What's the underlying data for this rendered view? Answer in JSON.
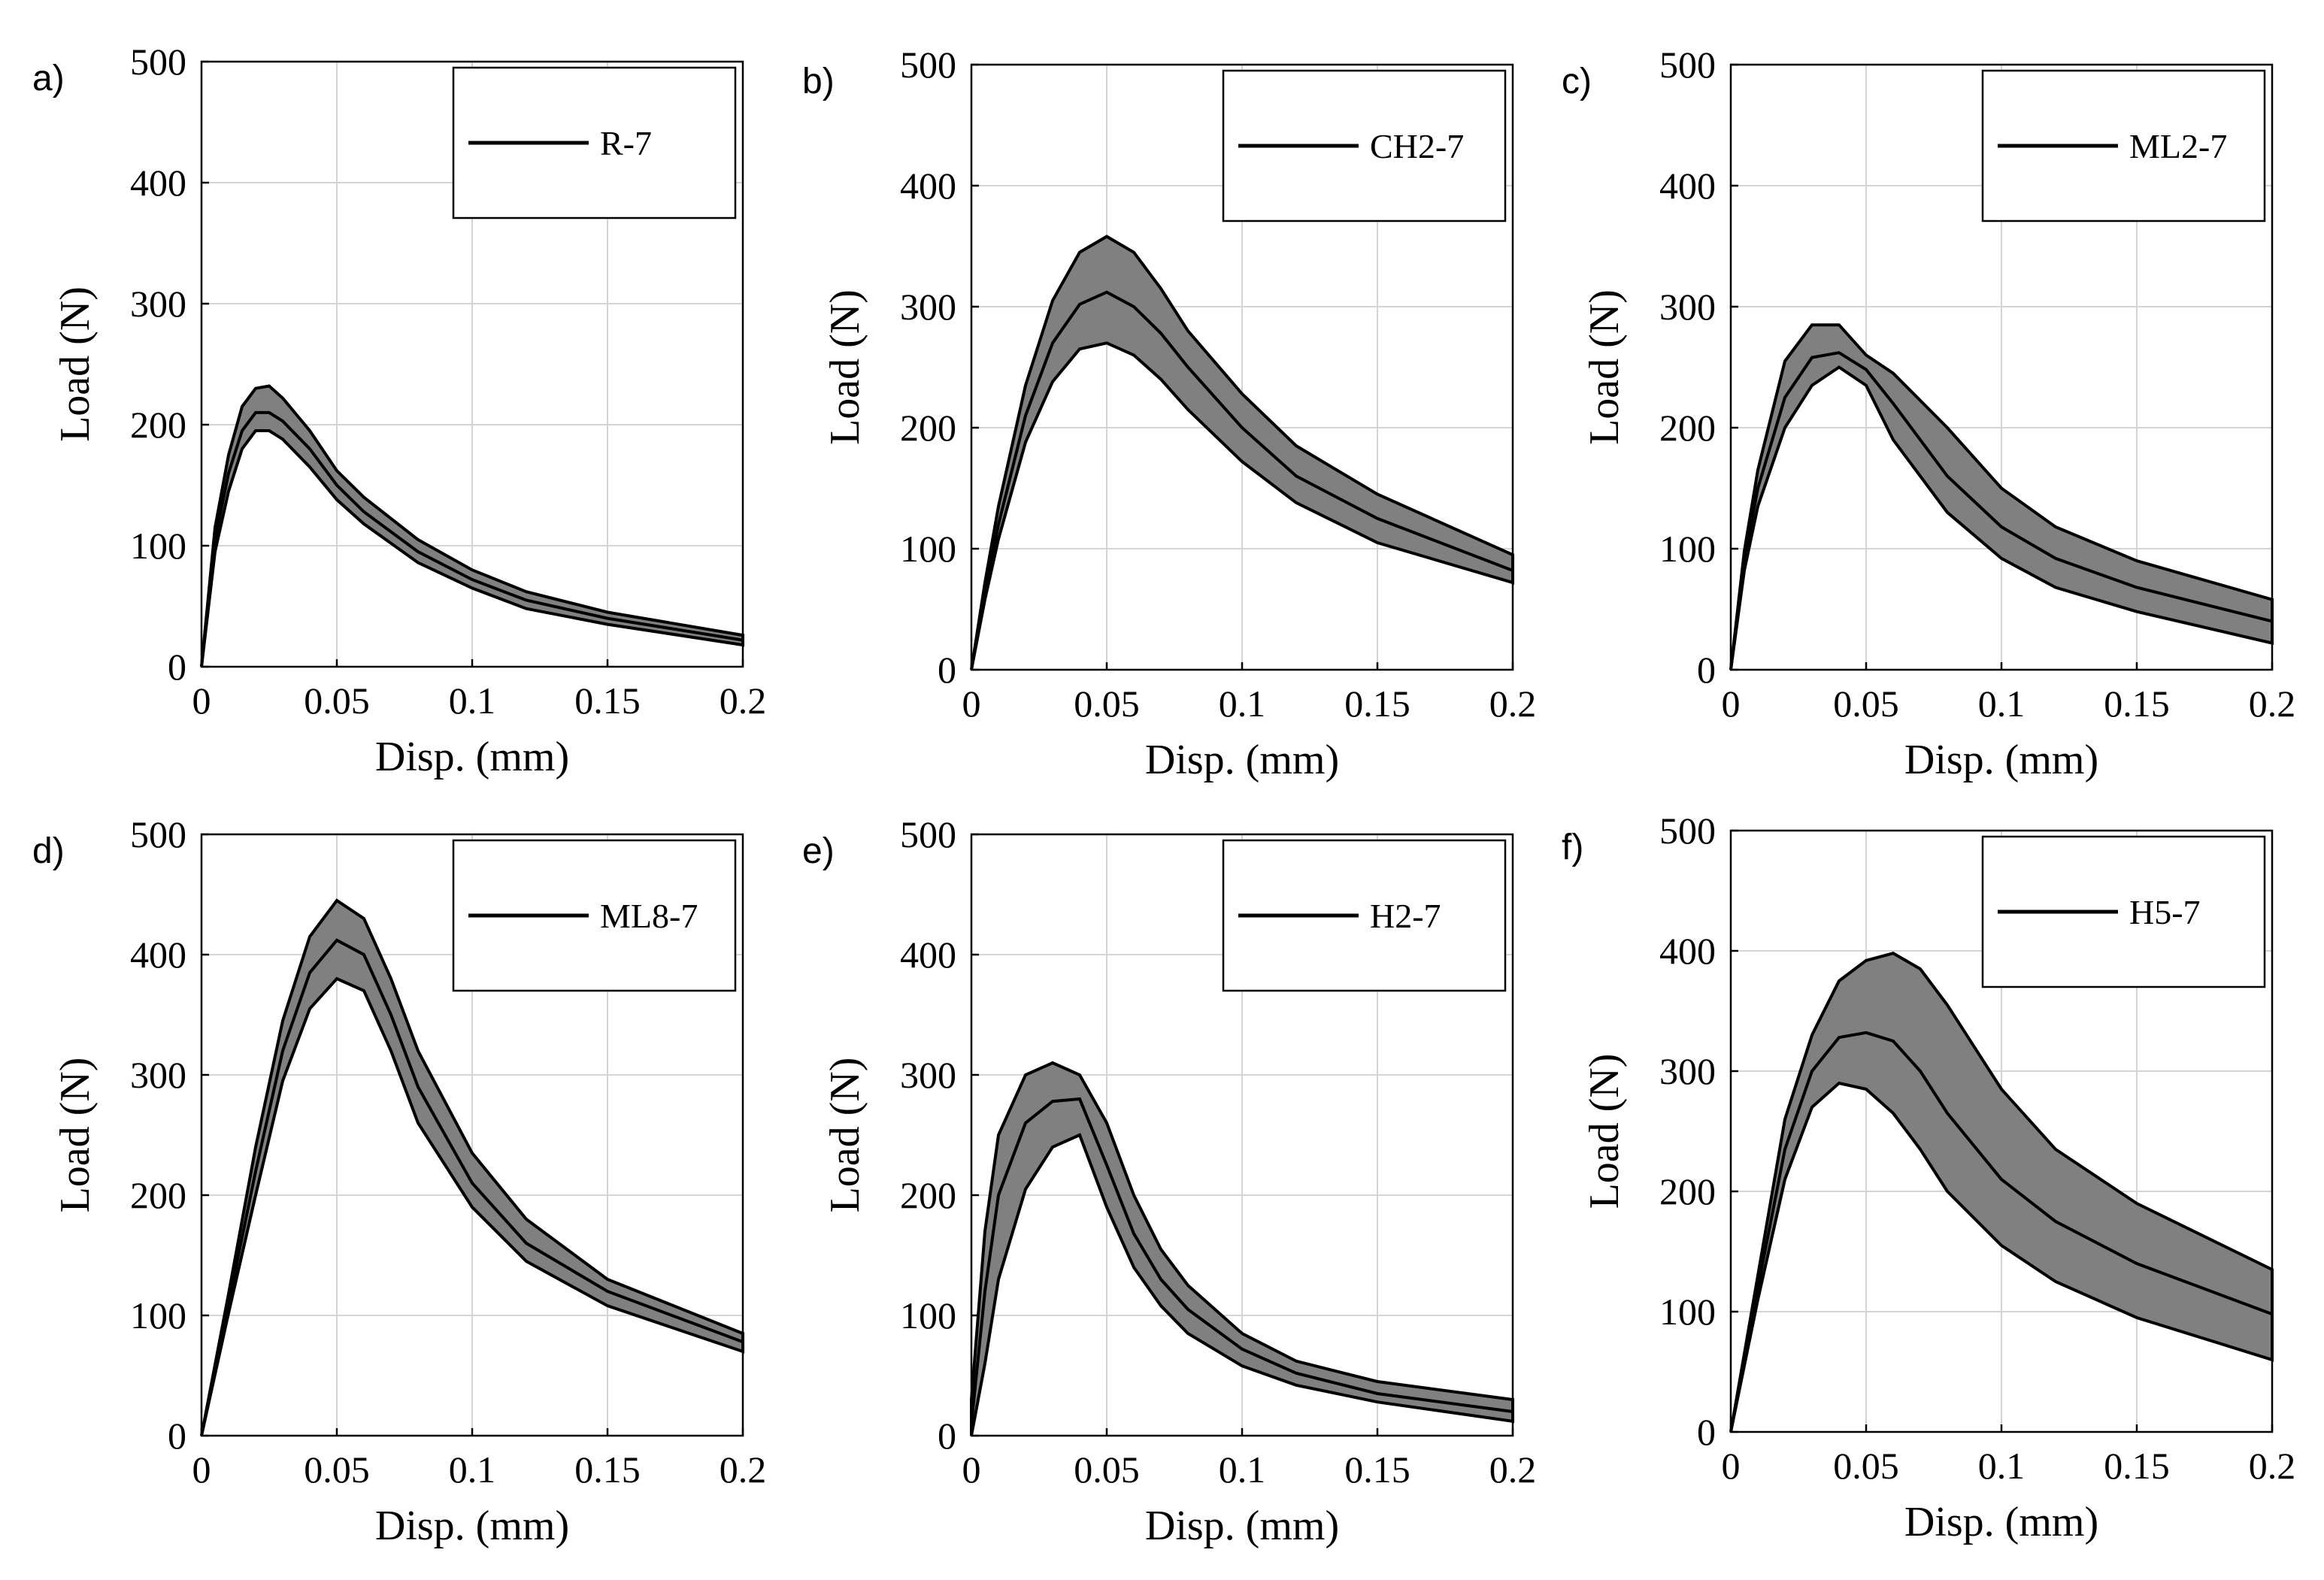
{
  "chart_data": [
    {
      "type": "area",
      "panel_label": "a)",
      "xlabel": "Disp. (mm)",
      "ylabel": "Load (N)",
      "xlim": [
        0,
        0.2
      ],
      "ylim": [
        0,
        500
      ],
      "xticks": [
        0,
        0.05,
        0.1,
        0.15,
        0.2
      ],
      "xtick_labels": [
        "0",
        "0.05",
        "0.1",
        "0.15",
        "0.2"
      ],
      "yticks": [
        0,
        100,
        200,
        300,
        400,
        500
      ],
      "ytick_labels": [
        "0",
        "100",
        "200",
        "300",
        "400",
        "500"
      ],
      "grid": true,
      "legend": {
        "entries": [
          "R-7"
        ],
        "location": "top-right"
      },
      "series": [
        {
          "name": "R-7",
          "x": [
            0,
            0.005,
            0.01,
            0.015,
            0.02,
            0.025,
            0.03,
            0.04,
            0.05,
            0.06,
            0.08,
            0.1,
            0.12,
            0.15,
            0.2
          ],
          "mean": [
            0,
            105,
            160,
            195,
            210,
            210,
            203,
            180,
            150,
            128,
            95,
            72,
            55,
            40,
            22
          ],
          "upper": [
            0,
            115,
            175,
            215,
            230,
            232,
            222,
            195,
            162,
            140,
            105,
            80,
            62,
            45,
            26
          ],
          "lower": [
            0,
            95,
            145,
            180,
            195,
            195,
            188,
            165,
            138,
            118,
            86,
            65,
            48,
            35,
            18
          ]
        }
      ]
    },
    {
      "type": "area",
      "panel_label": "b)",
      "xlabel": "Disp. (mm)",
      "ylabel": "Load (N)",
      "xlim": [
        0,
        0.2
      ],
      "ylim": [
        0,
        500
      ],
      "xticks": [
        0,
        0.05,
        0.1,
        0.15,
        0.2
      ],
      "xtick_labels": [
        "0",
        "0.05",
        "0.1",
        "0.15",
        "0.2"
      ],
      "yticks": [
        0,
        100,
        200,
        300,
        400,
        500
      ],
      "ytick_labels": [
        "0",
        "100",
        "200",
        "300",
        "400",
        "500"
      ],
      "grid": true,
      "legend": {
        "entries": [
          "CH2-7"
        ],
        "location": "top-right"
      },
      "series": [
        {
          "name": "CH2-7",
          "x": [
            0,
            0.005,
            0.01,
            0.02,
            0.03,
            0.04,
            0.05,
            0.06,
            0.07,
            0.08,
            0.1,
            0.12,
            0.15,
            0.2
          ],
          "mean": [
            0,
            65,
            120,
            210,
            270,
            302,
            312,
            300,
            278,
            250,
            200,
            160,
            125,
            82
          ],
          "upper": [
            0,
            72,
            135,
            235,
            305,
            345,
            358,
            345,
            315,
            280,
            228,
            185,
            145,
            95
          ],
          "lower": [
            0,
            58,
            108,
            188,
            238,
            265,
            270,
            260,
            240,
            215,
            172,
            138,
            105,
            72
          ]
        }
      ]
    },
    {
      "type": "area",
      "panel_label": "c)",
      "xlabel": "Disp. (mm)",
      "ylabel": "Load (N)",
      "xlim": [
        0,
        0.2
      ],
      "ylim": [
        0,
        500
      ],
      "xticks": [
        0,
        0.05,
        0.1,
        0.15,
        0.2
      ],
      "xtick_labels": [
        "0",
        "0.05",
        "0.1",
        "0.15",
        "0.2"
      ],
      "yticks": [
        0,
        100,
        200,
        300,
        400,
        500
      ],
      "ytick_labels": [
        "0",
        "100",
        "200",
        "300",
        "400",
        "500"
      ],
      "grid": true,
      "legend": {
        "entries": [
          "ML2-7"
        ],
        "location": "top-right"
      },
      "series": [
        {
          "name": "ML2-7",
          "x": [
            0,
            0.005,
            0.01,
            0.02,
            0.03,
            0.04,
            0.05,
            0.06,
            0.08,
            0.1,
            0.12,
            0.15,
            0.2
          ],
          "mean": [
            0,
            90,
            150,
            225,
            258,
            262,
            248,
            220,
            160,
            118,
            92,
            68,
            40
          ],
          "upper": [
            0,
            98,
            165,
            255,
            285,
            285,
            260,
            245,
            200,
            150,
            118,
            90,
            58
          ],
          "lower": [
            0,
            82,
            135,
            200,
            235,
            250,
            235,
            190,
            130,
            92,
            68,
            48,
            22
          ]
        }
      ]
    },
    {
      "type": "area",
      "panel_label": "d)",
      "xlabel": "Disp. (mm)",
      "ylabel": "Load (N)",
      "xlim": [
        0,
        0.2
      ],
      "ylim": [
        0,
        500
      ],
      "xticks": [
        0,
        0.05,
        0.1,
        0.15,
        0.2
      ],
      "xtick_labels": [
        "0",
        "0.05",
        "0.1",
        "0.15",
        "0.2"
      ],
      "yticks": [
        0,
        100,
        200,
        300,
        400,
        500
      ],
      "ytick_labels": [
        "0",
        "100",
        "200",
        "300",
        "400",
        "500"
      ],
      "grid": true,
      "legend": {
        "entries": [
          "ML8-7"
        ],
        "location": "top-right"
      },
      "series": [
        {
          "name": "ML8-7",
          "x": [
            0,
            0.01,
            0.02,
            0.03,
            0.04,
            0.05,
            0.06,
            0.07,
            0.08,
            0.1,
            0.12,
            0.15,
            0.2
          ],
          "mean": [
            0,
            110,
            220,
            320,
            385,
            412,
            400,
            350,
            290,
            210,
            160,
            120,
            78
          ],
          "upper": [
            0,
            118,
            240,
            345,
            415,
            445,
            430,
            380,
            320,
            235,
            180,
            130,
            85
          ],
          "lower": [
            0,
            102,
            200,
            295,
            355,
            380,
            370,
            320,
            260,
            190,
            145,
            108,
            70
          ]
        }
      ]
    },
    {
      "type": "area",
      "panel_label": "e)",
      "xlabel": "Disp. (mm)",
      "ylabel": "Load (N)",
      "xlim": [
        0,
        0.2
      ],
      "ylim": [
        0,
        500
      ],
      "xticks": [
        0,
        0.05,
        0.1,
        0.15,
        0.2
      ],
      "xtick_labels": [
        "0",
        "0.05",
        "0.1",
        "0.15",
        "0.2"
      ],
      "yticks": [
        0,
        100,
        200,
        300,
        400,
        500
      ],
      "ytick_labels": [
        "0",
        "100",
        "200",
        "300",
        "400",
        "500"
      ],
      "grid": true,
      "legend": {
        "entries": [
          "H2-7"
        ],
        "location": "top-right"
      },
      "series": [
        {
          "name": "H2-7",
          "x": [
            0,
            0.005,
            0.01,
            0.02,
            0.03,
            0.04,
            0.05,
            0.06,
            0.07,
            0.08,
            0.1,
            0.12,
            0.15,
            0.2
          ],
          "mean": [
            10,
            120,
            200,
            260,
            278,
            280,
            225,
            168,
            130,
            105,
            72,
            52,
            35,
            20
          ],
          "upper": [
            30,
            170,
            250,
            300,
            310,
            300,
            260,
            200,
            155,
            125,
            85,
            62,
            45,
            30
          ],
          "lower": [
            0,
            60,
            130,
            205,
            240,
            250,
            190,
            140,
            108,
            85,
            58,
            42,
            28,
            12
          ]
        }
      ]
    },
    {
      "type": "area",
      "panel_label": "f)",
      "xlabel": "Disp. (mm)",
      "ylabel": "Load (N)",
      "xlim": [
        0,
        0.2
      ],
      "ylim": [
        0,
        500
      ],
      "xticks": [
        0,
        0.05,
        0.1,
        0.15,
        0.2
      ],
      "xtick_labels": [
        "0",
        "0.05",
        "0.1",
        "0.15",
        "0.2"
      ],
      "yticks": [
        0,
        100,
        200,
        300,
        400,
        500
      ],
      "ytick_labels": [
        "0",
        "100",
        "200",
        "300",
        "400",
        "500"
      ],
      "grid": true,
      "legend": {
        "entries": [
          "H5-7"
        ],
        "location": "top-right"
      },
      "series": [
        {
          "name": "H5-7",
          "x": [
            0,
            0.01,
            0.02,
            0.03,
            0.04,
            0.05,
            0.06,
            0.07,
            0.08,
            0.1,
            0.12,
            0.15,
            0.2
          ],
          "mean": [
            0,
            120,
            235,
            300,
            328,
            332,
            325,
            300,
            265,
            210,
            175,
            140,
            98
          ],
          "upper": [
            0,
            130,
            260,
            330,
            375,
            392,
            398,
            385,
            355,
            285,
            235,
            190,
            135
          ],
          "lower": [
            0,
            110,
            210,
            270,
            290,
            285,
            265,
            235,
            200,
            155,
            125,
            95,
            60
          ]
        }
      ]
    }
  ]
}
